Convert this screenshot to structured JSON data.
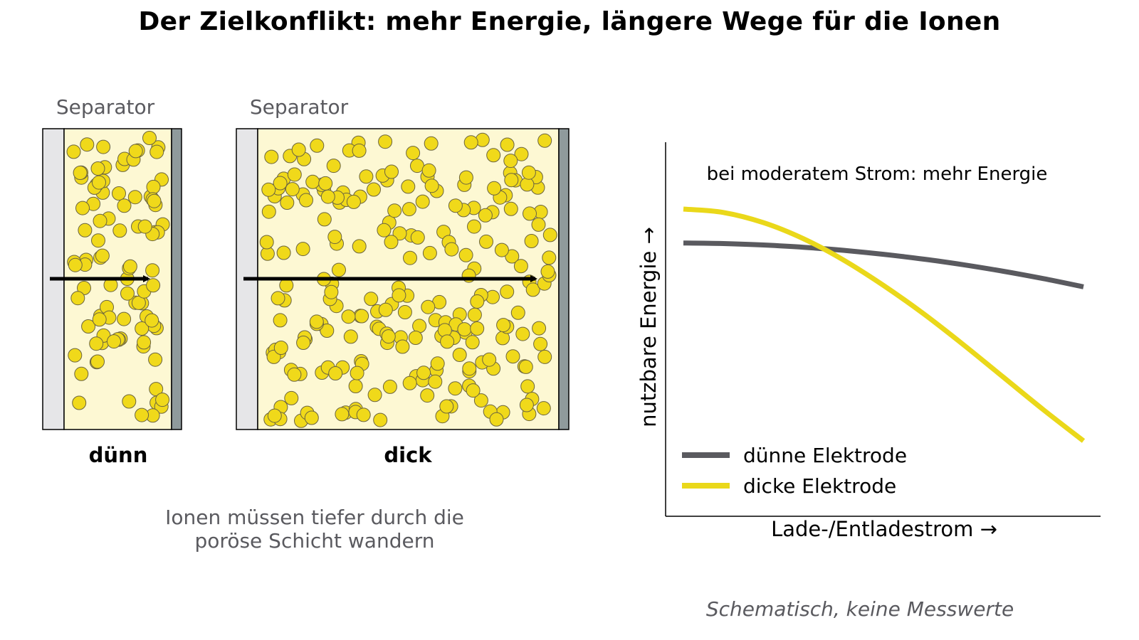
{
  "title": "Der Zielkonflikt: mehr Energie, längere Wege für die Ionen",
  "panels": [
    {
      "separator_label": "Separator",
      "caption": "dünn"
    },
    {
      "separator_label": "Separator",
      "caption": "dick"
    }
  ],
  "note": [
    "Ionen müssen tiefer durch die",
    "poröse Schicht wandern"
  ],
  "colors": {
    "separator": "#e6e6e8",
    "electrolyte": "#fdf8d3",
    "particle": "#f0d91a",
    "particle_edge": "#6b6440",
    "collector": "#8f9a9c",
    "arrow": "#000000",
    "thin_line": "#5a5a5f",
    "thick_line": "#ead81a",
    "muted_text": "#5a5a5f"
  },
  "chart_data": {
    "type": "line",
    "xlabel": "Lade-/Entladestrom →",
    "ylabel": "nutzbare Energie →",
    "annotation": "bei moderatem Strom: mehr Energie",
    "footnote": "Schematisch, keine Messwerte",
    "x_range": [
      0,
      1
    ],
    "y_range": [
      0,
      1
    ],
    "legend_position": "lower-left",
    "series": [
      {
        "name": "dünne Elektrode",
        "color": "#5a5a5f",
        "x": [
          0,
          0.1,
          0.2,
          0.3,
          0.4,
          0.5,
          0.6,
          0.7,
          0.8,
          0.9,
          1.0
        ],
        "y": [
          0.7,
          0.698,
          0.693,
          0.685,
          0.674,
          0.66,
          0.643,
          0.623,
          0.6,
          0.574,
          0.545
        ]
      },
      {
        "name": "dicke Elektrode",
        "color": "#ead81a",
        "x": [
          0,
          0.1,
          0.2,
          0.3,
          0.4,
          0.5,
          0.6,
          0.7,
          0.8,
          0.9,
          1.0
        ],
        "y": [
          0.82,
          0.808,
          0.772,
          0.715,
          0.64,
          0.55,
          0.45,
          0.34,
          0.225,
          0.11,
          0.0
        ]
      }
    ]
  }
}
